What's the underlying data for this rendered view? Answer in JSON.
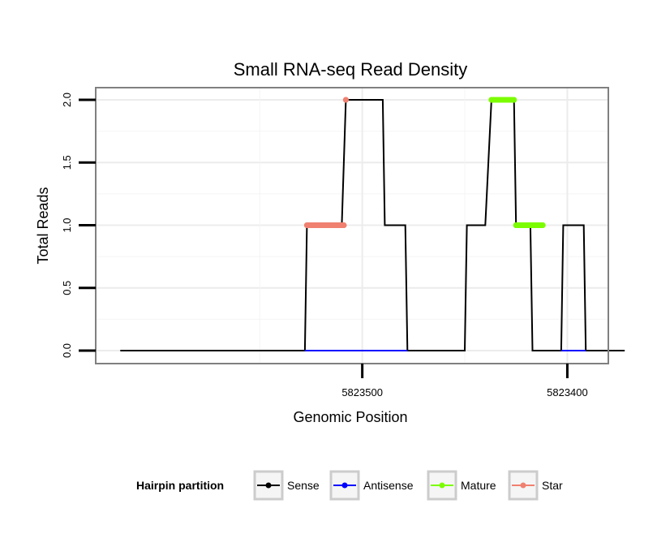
{
  "chart_data": {
    "type": "line",
    "title": "Small RNA-seq Read Density",
    "xlabel": "Genomic Position",
    "ylabel": "Total Reads",
    "x_reversed": true,
    "xlim": [
      5823630,
      5823380
    ],
    "ylim": [
      0,
      2
    ],
    "x_ticks": [
      5823500,
      5823400
    ],
    "x_tick_labels": [
      "5823500",
      "5823400"
    ],
    "y_ticks": [
      0,
      0.5,
      1,
      1.5,
      2
    ],
    "y_tick_labels": [
      "0.0",
      "0.5",
      "1.0",
      "1.5",
      "2.0"
    ],
    "grid": true,
    "legend": {
      "title": "Hairpin partition",
      "position": "bottom",
      "entries": [
        {
          "label": "Sense",
          "color": "#000000"
        },
        {
          "label": "Antisense",
          "color": "#0000ff"
        },
        {
          "label": "Mature",
          "color": "#7cfc00"
        },
        {
          "label": "Star",
          "color": "#f08070"
        }
      ]
    },
    "series": [
      {
        "name": "Sense",
        "color": "#000000",
        "style": "line",
        "x": [
          5823618,
          5823528,
          5823527,
          5823510,
          5823508,
          5823506,
          5823490,
          5823489,
          5823479,
          5823478,
          5823450,
          5823449,
          5823440,
          5823437,
          5823426,
          5823425,
          5823418,
          5823417,
          5823403,
          5823402,
          5823392,
          5823391,
          5823372
        ],
        "values": [
          0,
          0,
          1,
          1,
          2,
          2,
          2,
          1,
          1,
          0,
          0,
          1,
          1,
          2,
          2,
          1,
          1,
          0,
          0,
          1,
          1,
          0,
          0
        ]
      },
      {
        "name": "Antisense",
        "color": "#0000ff",
        "style": "segments",
        "segments": [
          {
            "x": [
              5823528,
              5823478
            ],
            "values": [
              0,
              0
            ]
          },
          {
            "x": [
              5823403,
              5823391
            ],
            "values": [
              0,
              0
            ]
          }
        ]
      },
      {
        "name": "Mature",
        "color": "#7cfc00",
        "style": "points",
        "segments": [
          {
            "x": [
              5823437,
              5823426
            ],
            "values": [
              2,
              2
            ]
          },
          {
            "x": [
              5823425,
              5823412
            ],
            "values": [
              1,
              1
            ]
          }
        ]
      },
      {
        "name": "Star",
        "color": "#f08070",
        "style": "points",
        "segments": [
          {
            "x": [
              5823527,
              5823509
            ],
            "values": [
              1,
              1
            ]
          },
          {
            "x": [
              5823508,
              5823508
            ],
            "values": [
              2,
              2
            ]
          }
        ]
      }
    ]
  }
}
